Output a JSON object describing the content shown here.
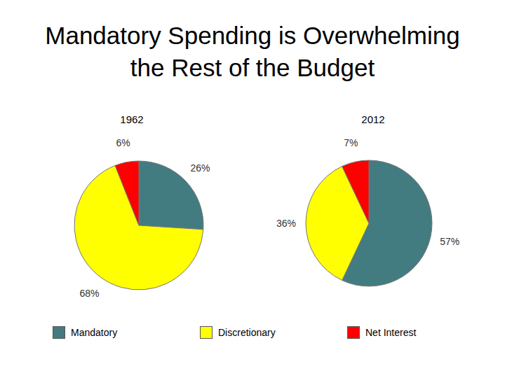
{
  "title": "Mandatory Spending is Overwhelming the Rest of the Budget",
  "chart_data": [
    {
      "type": "pie",
      "title": "1962",
      "categories": [
        "Mandatory",
        "Discretionary",
        "Net Interest"
      ],
      "values": [
        26,
        68,
        6
      ],
      "value_labels": [
        "26%",
        "68%",
        "6%"
      ],
      "colors": [
        "#427c80",
        "#ffff00",
        "#ff0000"
      ],
      "data_labels": true,
      "legend": "bottom"
    },
    {
      "type": "pie",
      "title": "2012",
      "categories": [
        "Mandatory",
        "Discretionary",
        "Net Interest"
      ],
      "values": [
        57,
        36,
        7
      ],
      "value_labels": [
        "57%",
        "36%",
        "7%"
      ],
      "colors": [
        "#427c80",
        "#ffff00",
        "#ff0000"
      ],
      "data_labels": true,
      "legend": "bottom"
    }
  ]
}
